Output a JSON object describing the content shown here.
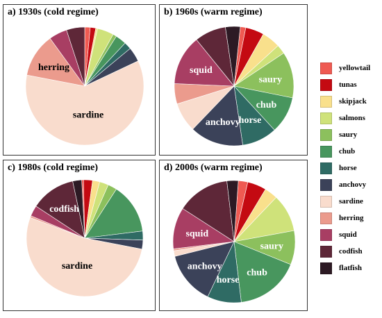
{
  "chart_data": [
    {
      "type": "pie",
      "title": "a) 1930s (cold regime)",
      "slices": [
        {
          "category": "yellowtail",
          "value": 1.5
        },
        {
          "category": "tunas",
          "value": 1.5
        },
        {
          "category": "skipjack",
          "value": 0.5
        },
        {
          "category": "salmons",
          "value": 4.5
        },
        {
          "category": "saury",
          "value": 1.0
        },
        {
          "category": "chub",
          "value": 3.0
        },
        {
          "category": "horse",
          "value": 2.0
        },
        {
          "category": "anchovy",
          "value": 4.0
        },
        {
          "category": "sardine",
          "value": 60.0
        },
        {
          "category": "herring",
          "value": 12.0
        },
        {
          "category": "squid",
          "value": 5.0
        },
        {
          "category": "codfish",
          "value": 5.0
        },
        {
          "category": "flatfish",
          "value": 0.0
        }
      ],
      "labels": [
        {
          "category": "sardine",
          "text": "sardine"
        },
        {
          "category": "herring",
          "text": "herring"
        }
      ]
    },
    {
      "type": "pie",
      "title": "b) 1960s  (warm regime)",
      "slices": [
        {
          "category": "yellowtail",
          "value": 1.5
        },
        {
          "category": "tunas",
          "value": 5.0
        },
        {
          "category": "skipjack",
          "value": 5.0
        },
        {
          "category": "salmons",
          "value": 2.5
        },
        {
          "category": "saury",
          "value": 12.5
        },
        {
          "category": "chub",
          "value": 10.0
        },
        {
          "category": "horse",
          "value": 9.5
        },
        {
          "category": "anchovy",
          "value": 14.5
        },
        {
          "category": "sardine",
          "value": 8.0
        },
        {
          "category": "herring",
          "value": 5.5
        },
        {
          "category": "squid",
          "value": 13.5
        },
        {
          "category": "codfish",
          "value": 8.5
        },
        {
          "category": "flatfish",
          "value": 4.0
        }
      ],
      "labels": [
        {
          "category": "saury",
          "text": "saury"
        },
        {
          "category": "chub",
          "text": "chub"
        },
        {
          "category": "horse",
          "text": "horse"
        },
        {
          "category": "anchovy",
          "text": "anchovy"
        },
        {
          "category": "squid",
          "text": "squid"
        }
      ]
    },
    {
      "type": "pie",
      "title": "c) 1980s  (cold regime)",
      "slices": [
        {
          "category": "yellowtail",
          "value": 0.5
        },
        {
          "category": "tunas",
          "value": 2.5
        },
        {
          "category": "skipjack",
          "value": 2.0
        },
        {
          "category": "salmons",
          "value": 2.5
        },
        {
          "category": "saury",
          "value": 2.5
        },
        {
          "category": "chub",
          "value": 14.0
        },
        {
          "category": "horse",
          "value": 2.5
        },
        {
          "category": "anchovy",
          "value": 2.5
        },
        {
          "category": "sardine",
          "value": 53.0
        },
        {
          "category": "herring",
          "value": 0.5
        },
        {
          "category": "squid",
          "value": 3.0
        },
        {
          "category": "codfish",
          "value": 12.5
        },
        {
          "category": "flatfish",
          "value": 2.5
        }
      ],
      "labels": [
        {
          "category": "sardine",
          "text": "sardine"
        },
        {
          "category": "codfish",
          "text": "codfish"
        }
      ]
    },
    {
      "type": "pie",
      "title": "d) 2000s  (warm regime)",
      "slices": [
        {
          "category": "yellowtail",
          "value": 2.5
        },
        {
          "category": "tunas",
          "value": 5.0
        },
        {
          "category": "skipjack",
          "value": 3.5
        },
        {
          "category": "salmons",
          "value": 10.0
        },
        {
          "category": "saury",
          "value": 9.0
        },
        {
          "category": "chub",
          "value": 17.0
        },
        {
          "category": "horse",
          "value": 9.0
        },
        {
          "category": "anchovy",
          "value": 14.0
        },
        {
          "category": "sardine",
          "value": 1.5
        },
        {
          "category": "herring",
          "value": 0.5
        },
        {
          "category": "squid",
          "value": 11.0
        },
        {
          "category": "codfish",
          "value": 14.0
        },
        {
          "category": "flatfish",
          "value": 3.0
        }
      ],
      "labels": [
        {
          "category": "saury",
          "text": "saury"
        },
        {
          "category": "chub",
          "text": "chub"
        },
        {
          "category": "horse",
          "text": "horse"
        },
        {
          "category": "anchovy",
          "text": "anchovy"
        },
        {
          "category": "squid",
          "text": "squid"
        }
      ]
    }
  ],
  "legend": [
    {
      "name": "yellowtail",
      "color": "#ef5a52"
    },
    {
      "name": "tunas",
      "color": "#c40a12"
    },
    {
      "name": "skipjack",
      "color": "#f9e08c"
    },
    {
      "name": "salmons",
      "color": "#cfe27a"
    },
    {
      "name": "saury",
      "color": "#8cc05d"
    },
    {
      "name": "chub",
      "color": "#48965e"
    },
    {
      "name": "horse",
      "color": "#2f6b64"
    },
    {
      "name": "anchovy",
      "color": "#3b4259"
    },
    {
      "name": "sardine",
      "color": "#f9dccd"
    },
    {
      "name": "herring",
      "color": "#eb9b8d"
    },
    {
      "name": "squid",
      "color": "#a83e63"
    },
    {
      "name": "codfish",
      "color": "#5e2738"
    },
    {
      "name": "flatfish",
      "color": "#2d1a24"
    }
  ],
  "label_colors": {
    "light": "#ffffff",
    "dark": "#000000"
  }
}
